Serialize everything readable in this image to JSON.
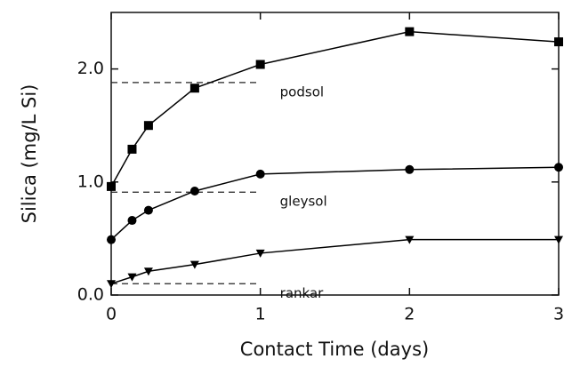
{
  "chart_data": {
    "type": "line",
    "x_label": "Contact Time (days)",
    "y_label": "Silica (mg/L Si)",
    "xlim": [
      0,
      3
    ],
    "ylim": [
      0,
      2.5
    ],
    "xticks": [
      0,
      1,
      2,
      3
    ],
    "yticks": [
      {
        "value": 0,
        "label": "0.0"
      },
      {
        "value": 1,
        "label": "1.0"
      },
      {
        "value": 2,
        "label": "2.0"
      }
    ],
    "series": [
      {
        "name": "podsol",
        "color": "#000000",
        "marker": "square",
        "x": [
          0,
          0.14,
          0.25,
          0.56,
          1,
          2,
          3
        ],
        "values": [
          0.96,
          1.29,
          1.5,
          1.83,
          2.04,
          2.33,
          2.24
        ],
        "reference": {
          "value": 1.88,
          "x": [
            0,
            1
          ]
        }
      },
      {
        "name": "gleysol",
        "color": "#000000",
        "marker": "circle",
        "x": [
          0,
          0.14,
          0.25,
          0.56,
          1,
          2,
          3
        ],
        "values": [
          0.49,
          0.66,
          0.75,
          0.92,
          1.07,
          1.11,
          1.13
        ],
        "reference": {
          "value": 0.91,
          "x": [
            0,
            1
          ]
        }
      },
      {
        "name": "rankar",
        "color": "#000000",
        "marker": "triangle-down",
        "x": [
          0,
          0.14,
          0.25,
          0.56,
          1,
          2,
          3
        ],
        "values": [
          0.1,
          0.16,
          0.21,
          0.27,
          0.37,
          0.49,
          0.49
        ],
        "reference": {
          "value": 0.1,
          "x": [
            0,
            1
          ]
        }
      }
    ]
  }
}
